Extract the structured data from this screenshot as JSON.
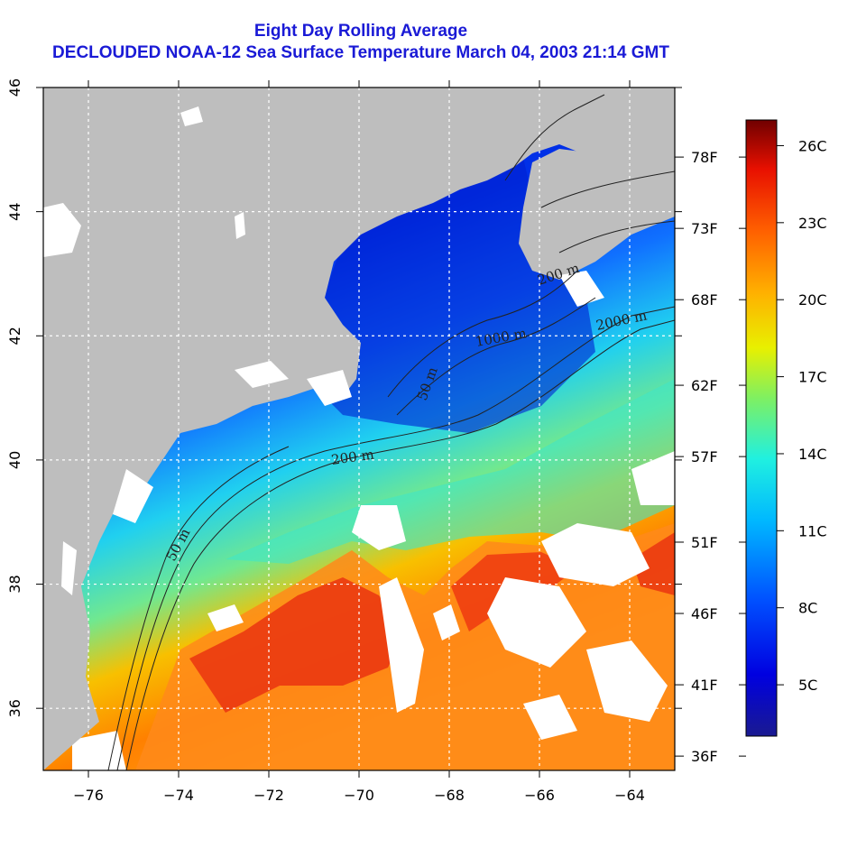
{
  "title_line1": "Eight Day Rolling Average",
  "title_line2": "DECLOUDED NOAA-12 Sea Surface Temperature March 04, 2003 21:14 GMT",
  "colors": {
    "title": "#1a1ad6",
    "land": "#bebebe",
    "no_data": "#ffffff",
    "contour": "#222222"
  },
  "map": {
    "lon_range": [
      -77,
      -63
    ],
    "lat_range": [
      35,
      46
    ],
    "x_ticks": [
      {
        "value": -76,
        "label": "−76"
      },
      {
        "value": -74,
        "label": "−74"
      },
      {
        "value": -72,
        "label": "−72"
      },
      {
        "value": -70,
        "label": "−70"
      },
      {
        "value": -68,
        "label": "−68"
      },
      {
        "value": -66,
        "label": "−66"
      },
      {
        "value": -64,
        "label": "−64"
      }
    ],
    "y_ticks": [
      {
        "value": 36,
        "label": "36"
      },
      {
        "value": 38,
        "label": "38"
      },
      {
        "value": 40,
        "label": "40"
      },
      {
        "value": 42,
        "label": "42"
      },
      {
        "value": 44,
        "label": "44"
      },
      {
        "value": 46,
        "label": "46"
      }
    ],
    "grid": "dotted white at every 2 degrees",
    "contour_labels": [
      "50 m",
      "50 m",
      "200 m",
      "1000 m",
      "2000 m",
      "200 m"
    ]
  },
  "colorbar": {
    "range_c": [
      3,
      27
    ],
    "celsius_labels": [
      {
        "value": 5,
        "label": "5C"
      },
      {
        "value": 8,
        "label": "8C"
      },
      {
        "value": 11,
        "label": "11C"
      },
      {
        "value": 14,
        "label": "14C"
      },
      {
        "value": 17,
        "label": "17C"
      },
      {
        "value": 20,
        "label": "20C"
      },
      {
        "value": 23,
        "label": "23C"
      },
      {
        "value": 26,
        "label": "26C"
      }
    ],
    "fahrenheit_labels": [
      {
        "value": 36,
        "label": "36F"
      },
      {
        "value": 41,
        "label": "41F"
      },
      {
        "value": 46,
        "label": "46F"
      },
      {
        "value": 51,
        "label": "51F"
      },
      {
        "value": 57,
        "label": "57F"
      },
      {
        "value": 62,
        "label": "62F"
      },
      {
        "value": 68,
        "label": "68F"
      },
      {
        "value": 73,
        "label": "73F"
      },
      {
        "value": 78,
        "label": "78F"
      }
    ]
  }
}
